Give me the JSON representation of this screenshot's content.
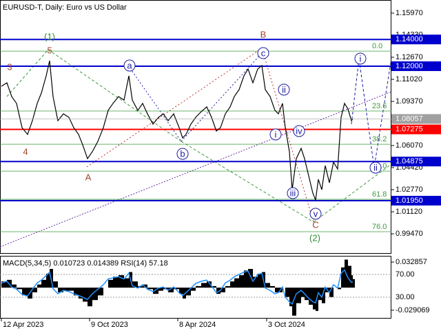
{
  "chart_data": {
    "type": "line",
    "title": "EURUSD-T, Daily:  Euro vs US Dollar",
    "xlim": [
      -2,
      566
    ],
    "xticks": [
      {
        "value": 0,
        "label": "12 Apr 2023"
      },
      {
        "value": 128,
        "label": "9 Oct 2023"
      },
      {
        "value": 256,
        "label": "8 Apr 2024"
      },
      {
        "value": 385,
        "label": "3 Oct 2024"
      }
    ],
    "ylim": [
      0.9798,
      1.1695
    ],
    "yticks": [
      {
        "value": 1.1597,
        "label": "1.15970"
      },
      {
        "value": 1.1433,
        "label": "1.14330"
      },
      {
        "value": 1.1267,
        "label": "1.12670"
      },
      {
        "value": 1.1102,
        "label": "1.11020"
      },
      {
        "value": 1.0937,
        "label": "1.09370"
      },
      {
        "value": 1.0607,
        "label": "1.06070"
      },
      {
        "value": 1.0442,
        "label": "1.04420"
      },
      {
        "value": 1.0277,
        "label": "1.02770"
      },
      {
        "value": 1.0112,
        "label": "1.01120"
      },
      {
        "value": 0.9947,
        "label": "0.99470"
      }
    ],
    "price": {
      "color": "#000000",
      "x": [
        0,
        8,
        15,
        22,
        30,
        38,
        45,
        52,
        58,
        65,
        70,
        75,
        82,
        90,
        98,
        105,
        112,
        118,
        125,
        132,
        140,
        148,
        155,
        162,
        170,
        178,
        185,
        190,
        198,
        205,
        212,
        220,
        228,
        235,
        242,
        250,
        258,
        263,
        268,
        275,
        282,
        290,
        298,
        305,
        312,
        318,
        325,
        332,
        338,
        345,
        352,
        358,
        365,
        372,
        378,
        383,
        390,
        397,
        402,
        408,
        412,
        418,
        422,
        428,
        435,
        440,
        446,
        452,
        456,
        460,
        465,
        470,
        476,
        482,
        488,
        493,
        498,
        503,
        508,
        510
      ],
      "values": [
        1.105,
        1.1076,
        1.0973,
        1.0922,
        1.0741,
        1.069,
        1.0793,
        1.0922,
        1.0999,
        1.1128,
        1.1241,
        1.0973,
        1.0793,
        1.0844,
        1.0818,
        1.0741,
        1.069,
        1.0612,
        1.0509,
        1.0561,
        1.0638,
        1.0741,
        1.087,
        1.0922,
        1.0973,
        1.0947,
        1.1128,
        1.0947,
        1.087,
        1.0922,
        1.0844,
        1.0767,
        1.0818,
        1.0844,
        1.0793,
        1.0844,
        1.0741,
        1.0664,
        1.069,
        1.0767,
        1.0818,
        1.086,
        1.0896,
        1.0818,
        1.0715,
        1.0741,
        1.0844,
        1.0896,
        1.0973,
        1.1025,
        1.1128,
        1.1179,
        1.1076,
        1.1179,
        1.1205,
        1.1025,
        1.0973,
        1.087,
        1.0844,
        1.0922,
        1.0741,
        1.0561,
        1.0277,
        1.0509,
        1.0586,
        1.0509,
        1.038,
        1.0251,
        1.02,
        1.0354,
        1.0277,
        1.0457,
        1.0329,
        1.0483,
        1.0432,
        1.0818,
        1.0922,
        1.088,
        1.0793,
        1.0806
      ]
    },
    "current_price": {
      "value": 1.08057,
      "label": "1.08057",
      "color": "#a0a0a0"
    },
    "levels": [
      {
        "value": 1.14,
        "label": "1.14000",
        "color": "#0000cc"
      },
      {
        "value": 1.12,
        "label": "1.12000",
        "color": "#0000cc"
      },
      {
        "value": 1.07275,
        "label": "1.07275",
        "color": "#ff0000"
      },
      {
        "value": 1.04875,
        "label": "1.04875",
        "color": "#0000cc"
      },
      {
        "value": 1.0195,
        "label": "1.01950",
        "color": "#0000cc"
      }
    ],
    "fibonacci": {
      "color": "#3c9a3c",
      "levels": [
        {
          "value": 1.1313,
          "label": "0.0"
        },
        {
          "value": 1.0865,
          "label": "23.6"
        },
        {
          "value": 1.0617,
          "label": "38.2"
        },
        {
          "value": 1.0416,
          "label": "50.0"
        },
        {
          "value": 1.0205,
          "label": "61.8"
        },
        {
          "value": 0.9963,
          "label": "76.0"
        }
      ]
    },
    "annotations": [
      {
        "text": "(1)",
        "x": 70,
        "y": 1.1422,
        "color": "#2e8b2e",
        "circled": false
      },
      {
        "text": "5",
        "x": 70,
        "y": 1.1319,
        "color": "#a0422a",
        "circled": false
      },
      {
        "text": "3",
        "x": 12,
        "y": 1.1195,
        "color": "#a0422a",
        "circled": false
      },
      {
        "text": "4",
        "x": 35,
        "y": 1.0561,
        "color": "#a0422a",
        "circled": false
      },
      {
        "text": "A",
        "x": 126,
        "y": 1.037,
        "color": "#a0422a",
        "circled": false
      },
      {
        "text": "B",
        "x": 380,
        "y": 1.1437,
        "color": "#a0422a",
        "circled": false
      },
      {
        "text": "a",
        "x": 186,
        "y": 1.1205,
        "color": "#1a1aa0",
        "circled": true
      },
      {
        "text": "b",
        "x": 263,
        "y": 1.0545,
        "color": "#1a1aa0",
        "circled": true
      },
      {
        "text": "c",
        "x": 380,
        "y": 1.1298,
        "color": "#1a1aa0",
        "circled": true
      },
      {
        "text": "i",
        "x": 398,
        "y": 1.069,
        "color": "#1a1aa0",
        "circled": true
      },
      {
        "text": "ii",
        "x": 410,
        "y": 1.1025,
        "color": "#1a1aa0",
        "circled": true
      },
      {
        "text": "iii",
        "x": 423,
        "y": 1.0251,
        "color": "#1a1aa0",
        "circled": true
      },
      {
        "text": "iv",
        "x": 432,
        "y": 1.0715,
        "color": "#1a1aa0",
        "circled": true
      },
      {
        "text": "v",
        "x": 456,
        "y": 1.0097,
        "color": "#1a1aa0",
        "circled": true
      },
      {
        "text": "C",
        "x": 456,
        "y": 1.0014,
        "color": "#a0422a",
        "circled": false
      },
      {
        "text": "(2)",
        "x": 455,
        "y": 0.9916,
        "color": "#2e8b2e",
        "circled": false
      },
      {
        "text": "i",
        "x": 521,
        "y": 1.1257,
        "color": "#1a1aa0",
        "circled": true
      },
      {
        "text": "ii",
        "x": 543,
        "y": 1.0442,
        "color": "#1a1aa0",
        "circled": true
      }
    ],
    "indicator": {
      "label": "MACD(5,34,5) 0.010723 0.014389 RSI(14) 57.18",
      "macd": {
        "color": "#000000",
        "ylim": [
          -0.0398,
          0.04
        ],
        "yticks": [
          0.032857,
          -0.029069
        ],
        "values": [
          0.008,
          0.01,
          0.004,
          -0.002,
          -0.01,
          -0.014,
          -0.006,
          0.004,
          0.01,
          0.018,
          0.024,
          0.008,
          -0.006,
          -0.004,
          -0.004,
          -0.01,
          -0.014,
          -0.018,
          -0.024,
          -0.016,
          -0.01,
          0.0,
          0.01,
          0.014,
          0.016,
          0.012,
          0.02,
          0.008,
          0.002,
          0.004,
          -0.002,
          -0.008,
          -0.004,
          -0.002,
          -0.006,
          -0.002,
          -0.008,
          -0.014,
          -0.01,
          -0.004,
          0.002,
          0.006,
          0.008,
          0.002,
          -0.008,
          -0.006,
          0.002,
          0.008,
          0.012,
          0.016,
          0.022,
          0.024,
          0.014,
          0.018,
          0.02,
          0.006,
          0.002,
          -0.006,
          -0.006,
          0.0,
          -0.012,
          -0.024,
          -0.036,
          -0.02,
          -0.012,
          -0.016,
          -0.022,
          -0.028,
          -0.03,
          -0.016,
          -0.02,
          -0.006,
          -0.012,
          0.0,
          -0.002,
          0.026,
          0.036,
          0.028,
          0.016,
          0.011
        ]
      },
      "rsi": {
        "color": "#1e90ff",
        "ylim": [
          -7.6,
          101.5
        ],
        "yticks": [
          {
            "value": 70,
            "label": "70.00"
          },
          {
            "value": 30,
            "label": "30.00"
          }
        ],
        "values": [
          55,
          58,
          48,
          44,
          35,
          32,
          44,
          55,
          60,
          68,
          74,
          45,
          36,
          42,
          40,
          36,
          33,
          30,
          26,
          36,
          44,
          52,
          62,
          64,
          66,
          62,
          72,
          50,
          46,
          52,
          44,
          40,
          46,
          48,
          42,
          48,
          38,
          33,
          38,
          46,
          54,
          58,
          60,
          50,
          38,
          42,
          55,
          60,
          66,
          70,
          74,
          76,
          58,
          70,
          72,
          46,
          42,
          36,
          38,
          48,
          30,
          22,
          18,
          36,
          42,
          36,
          28,
          22,
          20,
          38,
          30,
          48,
          38,
          52,
          46,
          72,
          78,
          64,
          56,
          57
        ]
      }
    }
  }
}
